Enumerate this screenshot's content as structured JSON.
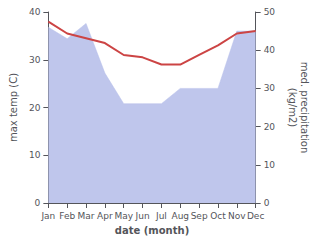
{
  "chart_data": {
    "type": "line",
    "categories": [
      "Jan",
      "Feb",
      "Mar",
      "Apr",
      "May",
      "Jun",
      "Jul",
      "Aug",
      "Sep",
      "Oct",
      "Nov",
      "Dec"
    ],
    "series": [
      {
        "type": "area",
        "axis": "y2",
        "color": "#b8c0ea",
        "values": [
          46,
          43,
          47,
          34,
          26,
          26,
          26,
          30,
          30,
          30,
          45,
          45
        ]
      },
      {
        "type": "line",
        "axis": "y",
        "color": "#cc4444",
        "values": [
          38,
          35.5,
          34.5,
          33.5,
          31,
          30.5,
          29,
          29,
          31,
          33,
          35.5,
          36
        ]
      }
    ],
    "xlabel": "date (month)",
    "ylabel": "max temp (C)",
    "y2label": "med. precipitation\n(kg/m2)",
    "ylim": [
      0,
      40
    ],
    "yticks": [
      0,
      10,
      20,
      30,
      40
    ],
    "y2lim": [
      0,
      50
    ],
    "y2ticks": [
      0,
      10,
      20,
      30,
      40,
      50
    ],
    "grid": false
  }
}
